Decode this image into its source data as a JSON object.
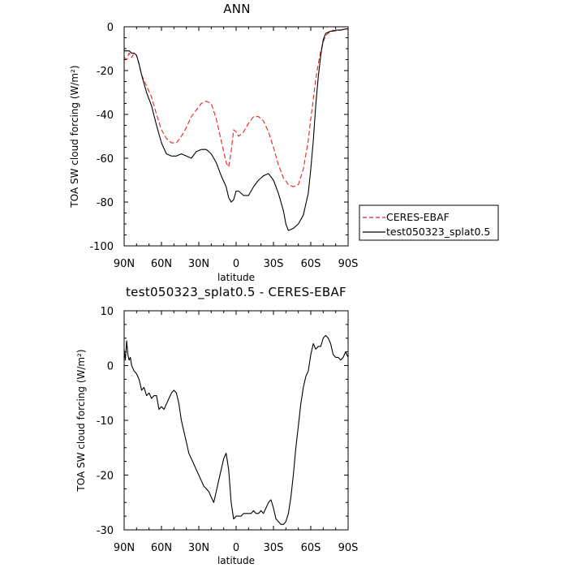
{
  "chart_data": [
    {
      "type": "line",
      "title": "ANN",
      "xlabel": "latitude",
      "ylabel": "TOA SW cloud forcing (W/m²)",
      "xlim": [
        90,
        -90
      ],
      "ylim": [
        -100,
        0
      ],
      "xticks": [
        {
          "value": 90,
          "label": "90N"
        },
        {
          "value": 60,
          "label": "60N"
        },
        {
          "value": 30,
          "label": "30N"
        },
        {
          "value": 0,
          "label": "0"
        },
        {
          "value": -30,
          "label": "30S"
        },
        {
          "value": -60,
          "label": "60S"
        },
        {
          "value": -90,
          "label": "90S"
        }
      ],
      "yticks": [
        0,
        -20,
        -40,
        -60,
        -80,
        -100
      ],
      "legend_position": "right",
      "series": [
        {
          "name": "CERES-EBAF",
          "color": "#e8231d",
          "dash": "dashed",
          "x": [
            90,
            88,
            86,
            84,
            82,
            80,
            78,
            76,
            72,
            68,
            64,
            60,
            56,
            52,
            48,
            44,
            40,
            36,
            32,
            28,
            24,
            20,
            16,
            12,
            8,
            6,
            4,
            2,
            0,
            -2,
            -6,
            -10,
            -14,
            -18,
            -22,
            -26,
            -30,
            -34,
            -38,
            -42,
            -46,
            -50,
            -54,
            -58,
            -60,
            -62,
            -64,
            -66,
            -68,
            -70,
            -72,
            -74,
            -76,
            -78,
            -80,
            -84,
            -88,
            -90
          ],
          "y": [
            -14,
            -15,
            -12,
            -14,
            -12,
            -13,
            -17,
            -22,
            -27,
            -32,
            -40,
            -47,
            -51,
            -53,
            -53,
            -50,
            -46,
            -41,
            -38,
            -35,
            -34,
            -35,
            -42,
            -52,
            -62,
            -64,
            -57,
            -47,
            -48,
            -50,
            -48,
            -44,
            -41,
            -41,
            -43,
            -48,
            -55,
            -63,
            -69,
            -72,
            -73,
            -72,
            -65,
            -52,
            -42,
            -33,
            -24,
            -17,
            -11,
            -7,
            -4,
            -3,
            -2,
            -1.5,
            -2,
            -1.5,
            -1,
            -1
          ]
        },
        {
          "name": "test050323_splat0.5",
          "color": "#000000",
          "dash": "solid",
          "x": [
            90,
            88,
            86,
            84,
            82,
            80,
            78,
            76,
            72,
            68,
            64,
            60,
            56,
            52,
            48,
            44,
            40,
            36,
            32,
            28,
            24,
            20,
            16,
            12,
            8,
            6,
            4,
            2,
            0,
            -2,
            -6,
            -10,
            -14,
            -18,
            -22,
            -26,
            -30,
            -34,
            -38,
            -40,
            -42,
            -46,
            -50,
            -54,
            -58,
            -60,
            -62,
            -64,
            -66,
            -68,
            -70,
            -72,
            -74,
            -76,
            -78,
            -80,
            -84,
            -88,
            -90
          ],
          "y": [
            -11,
            -11,
            -11,
            -12,
            -12,
            -13,
            -17,
            -22,
            -30,
            -36,
            -45,
            -53,
            -58,
            -59,
            -59,
            -58,
            -59,
            -60,
            -57,
            -56,
            -56,
            -58,
            -62,
            -68,
            -73,
            -78,
            -80,
            -79,
            -75,
            -75,
            -77,
            -77,
            -73,
            -70,
            -68,
            -67,
            -70,
            -76,
            -84,
            -90,
            -93,
            -92,
            -90,
            -86,
            -76,
            -65,
            -52,
            -36,
            -23,
            -13,
            -6,
            -3,
            -2.5,
            -2,
            -2,
            -1.5,
            -1.5,
            -1,
            -1
          ]
        }
      ]
    },
    {
      "type": "line",
      "title": "test050323_splat0.5 - CERES-EBAF",
      "xlabel": "latitude",
      "ylabel": "TOA SW cloud forcing (W/m²)",
      "xlim": [
        90,
        -90
      ],
      "ylim": [
        -30,
        10
      ],
      "xticks": [
        {
          "value": 90,
          "label": "90N"
        },
        {
          "value": 60,
          "label": "60N"
        },
        {
          "value": 30,
          "label": "30N"
        },
        {
          "value": 0,
          "label": "0"
        },
        {
          "value": -30,
          "label": "30S"
        },
        {
          "value": -60,
          "label": "60S"
        },
        {
          "value": -90,
          "label": "90S"
        }
      ],
      "yticks": [
        10,
        0,
        -10,
        -20,
        -30
      ],
      "series": [
        {
          "color": "#000000",
          "dash": "solid",
          "x": [
            90,
            89,
            88,
            87,
            86,
            85,
            84,
            82,
            80,
            78,
            76,
            74,
            72,
            70,
            68,
            66,
            64,
            62,
            60,
            58,
            56,
            54,
            52,
            50,
            48,
            46,
            44,
            42,
            40,
            38,
            36,
            34,
            32,
            30,
            28,
            26,
            24,
            22,
            20,
            18,
            16,
            14,
            12,
            10,
            8,
            6,
            4,
            2,
            0,
            -2,
            -4,
            -6,
            -8,
            -10,
            -12,
            -14,
            -16,
            -18,
            -20,
            -22,
            -24,
            -26,
            -28,
            -30,
            -32,
            -34,
            -36,
            -38,
            -40,
            -42,
            -44,
            -46,
            -48,
            -50,
            -52,
            -54,
            -56,
            -58,
            -60,
            -62,
            -64,
            -66,
            -68,
            -70,
            -72,
            -74,
            -76,
            -78,
            -80,
            -82,
            -84,
            -86,
            -88,
            -90
          ],
          "y": [
            3,
            1,
            4.5,
            2,
            1,
            1.5,
            0,
            -1,
            -1.5,
            -2.5,
            -4.5,
            -4,
            -5.5,
            -5,
            -6,
            -5.5,
            -5.5,
            -8,
            -7.5,
            -8,
            -7,
            -6,
            -5,
            -4.5,
            -5,
            -7,
            -10,
            -12,
            -14,
            -16,
            -17,
            -18,
            -19,
            -20,
            -21,
            -22,
            -22.5,
            -23,
            -24,
            -25,
            -23,
            -21,
            -19,
            -17,
            -16,
            -19,
            -25,
            -28,
            -27.5,
            -27.5,
            -27.5,
            -27,
            -27,
            -27,
            -27,
            -26.5,
            -27,
            -27,
            -26.5,
            -27,
            -26,
            -25,
            -24.5,
            -26,
            -28,
            -28.5,
            -29,
            -29,
            -28.5,
            -27,
            -24,
            -20,
            -15,
            -11,
            -7,
            -4,
            -2,
            -1,
            2,
            4,
            3,
            3.5,
            3.5,
            5,
            5.5,
            5,
            4,
            2,
            1.5,
            1.5,
            1,
            1.5,
            2.5,
            1.5
          ]
        }
      ]
    }
  ]
}
